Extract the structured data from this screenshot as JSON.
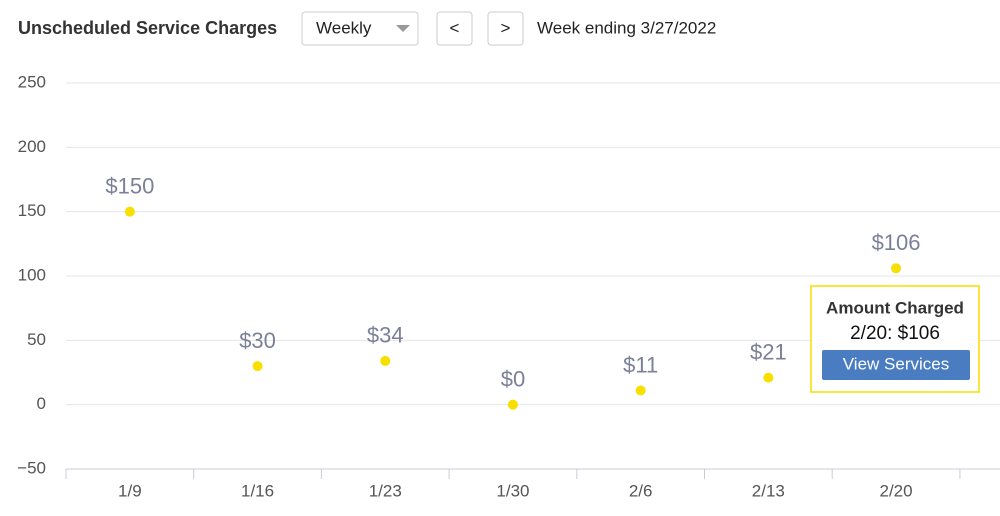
{
  "header": {
    "title": "Unscheduled Service Charges",
    "period_select": "Weekly",
    "prev_button": "<",
    "next_button": ">",
    "week_label": "Week ending 3/27/2022"
  },
  "chart_data": {
    "type": "line",
    "categories": [
      "1/9",
      "1/16",
      "1/23",
      "1/30",
      "2/6",
      "2/13",
      "2/20"
    ],
    "series": [
      {
        "name": "Amount Charged",
        "color": "#f7df00",
        "values": [
          150,
          30,
          34,
          0,
          11,
          21,
          106
        ],
        "value_labels": [
          "$150",
          "$30",
          "$34",
          "$0",
          "$11",
          "$21",
          "$106"
        ]
      }
    ],
    "ylim": [
      -50,
      250
    ],
    "yticks": [
      {
        "value": -50,
        "label": "−50"
      },
      0,
      50,
      100,
      150,
      200,
      250
    ],
    "grid": true
  },
  "tooltip": {
    "title": "Amount Charged",
    "text": "2/20: $106",
    "button": "View Services"
  }
}
